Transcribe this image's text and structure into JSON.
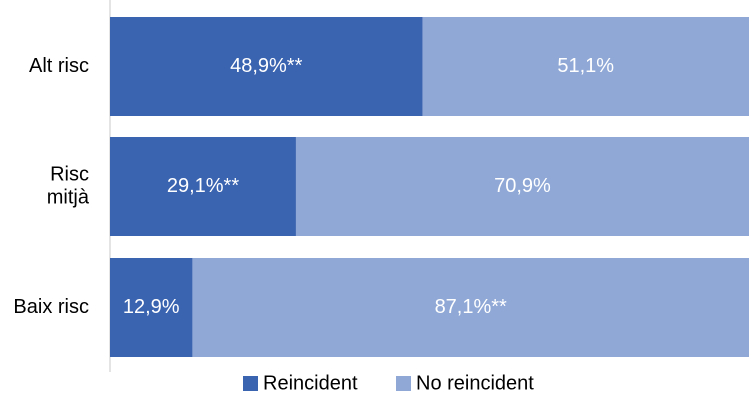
{
  "colors": {
    "reincident": "#3a63b0",
    "no_reincident": "#8fa8d6",
    "axis": "#c8c8c8"
  },
  "chart_data": {
    "type": "bar",
    "orientation": "horizontal",
    "stacked": true,
    "title": "",
    "xlabel": "",
    "ylabel": "",
    "xlim": [
      0,
      100
    ],
    "grid": false,
    "legend_position": "bottom",
    "categories": [
      [
        "Alt risc"
      ],
      [
        "Risc",
        "mitjà"
      ],
      [
        "Baix risc"
      ]
    ],
    "series": [
      {
        "name": "Reincident",
        "color": "#3a63b0",
        "values": [
          48.9,
          29.1,
          12.9
        ],
        "labels": [
          "48,9%**",
          "29,1%**",
          "12,9%"
        ]
      },
      {
        "name": "No reincident",
        "color": "#8fa8d6",
        "values": [
          51.1,
          70.9,
          87.1
        ],
        "labels": [
          "51,1%",
          "70,9%",
          "87,1%**"
        ]
      }
    ]
  }
}
